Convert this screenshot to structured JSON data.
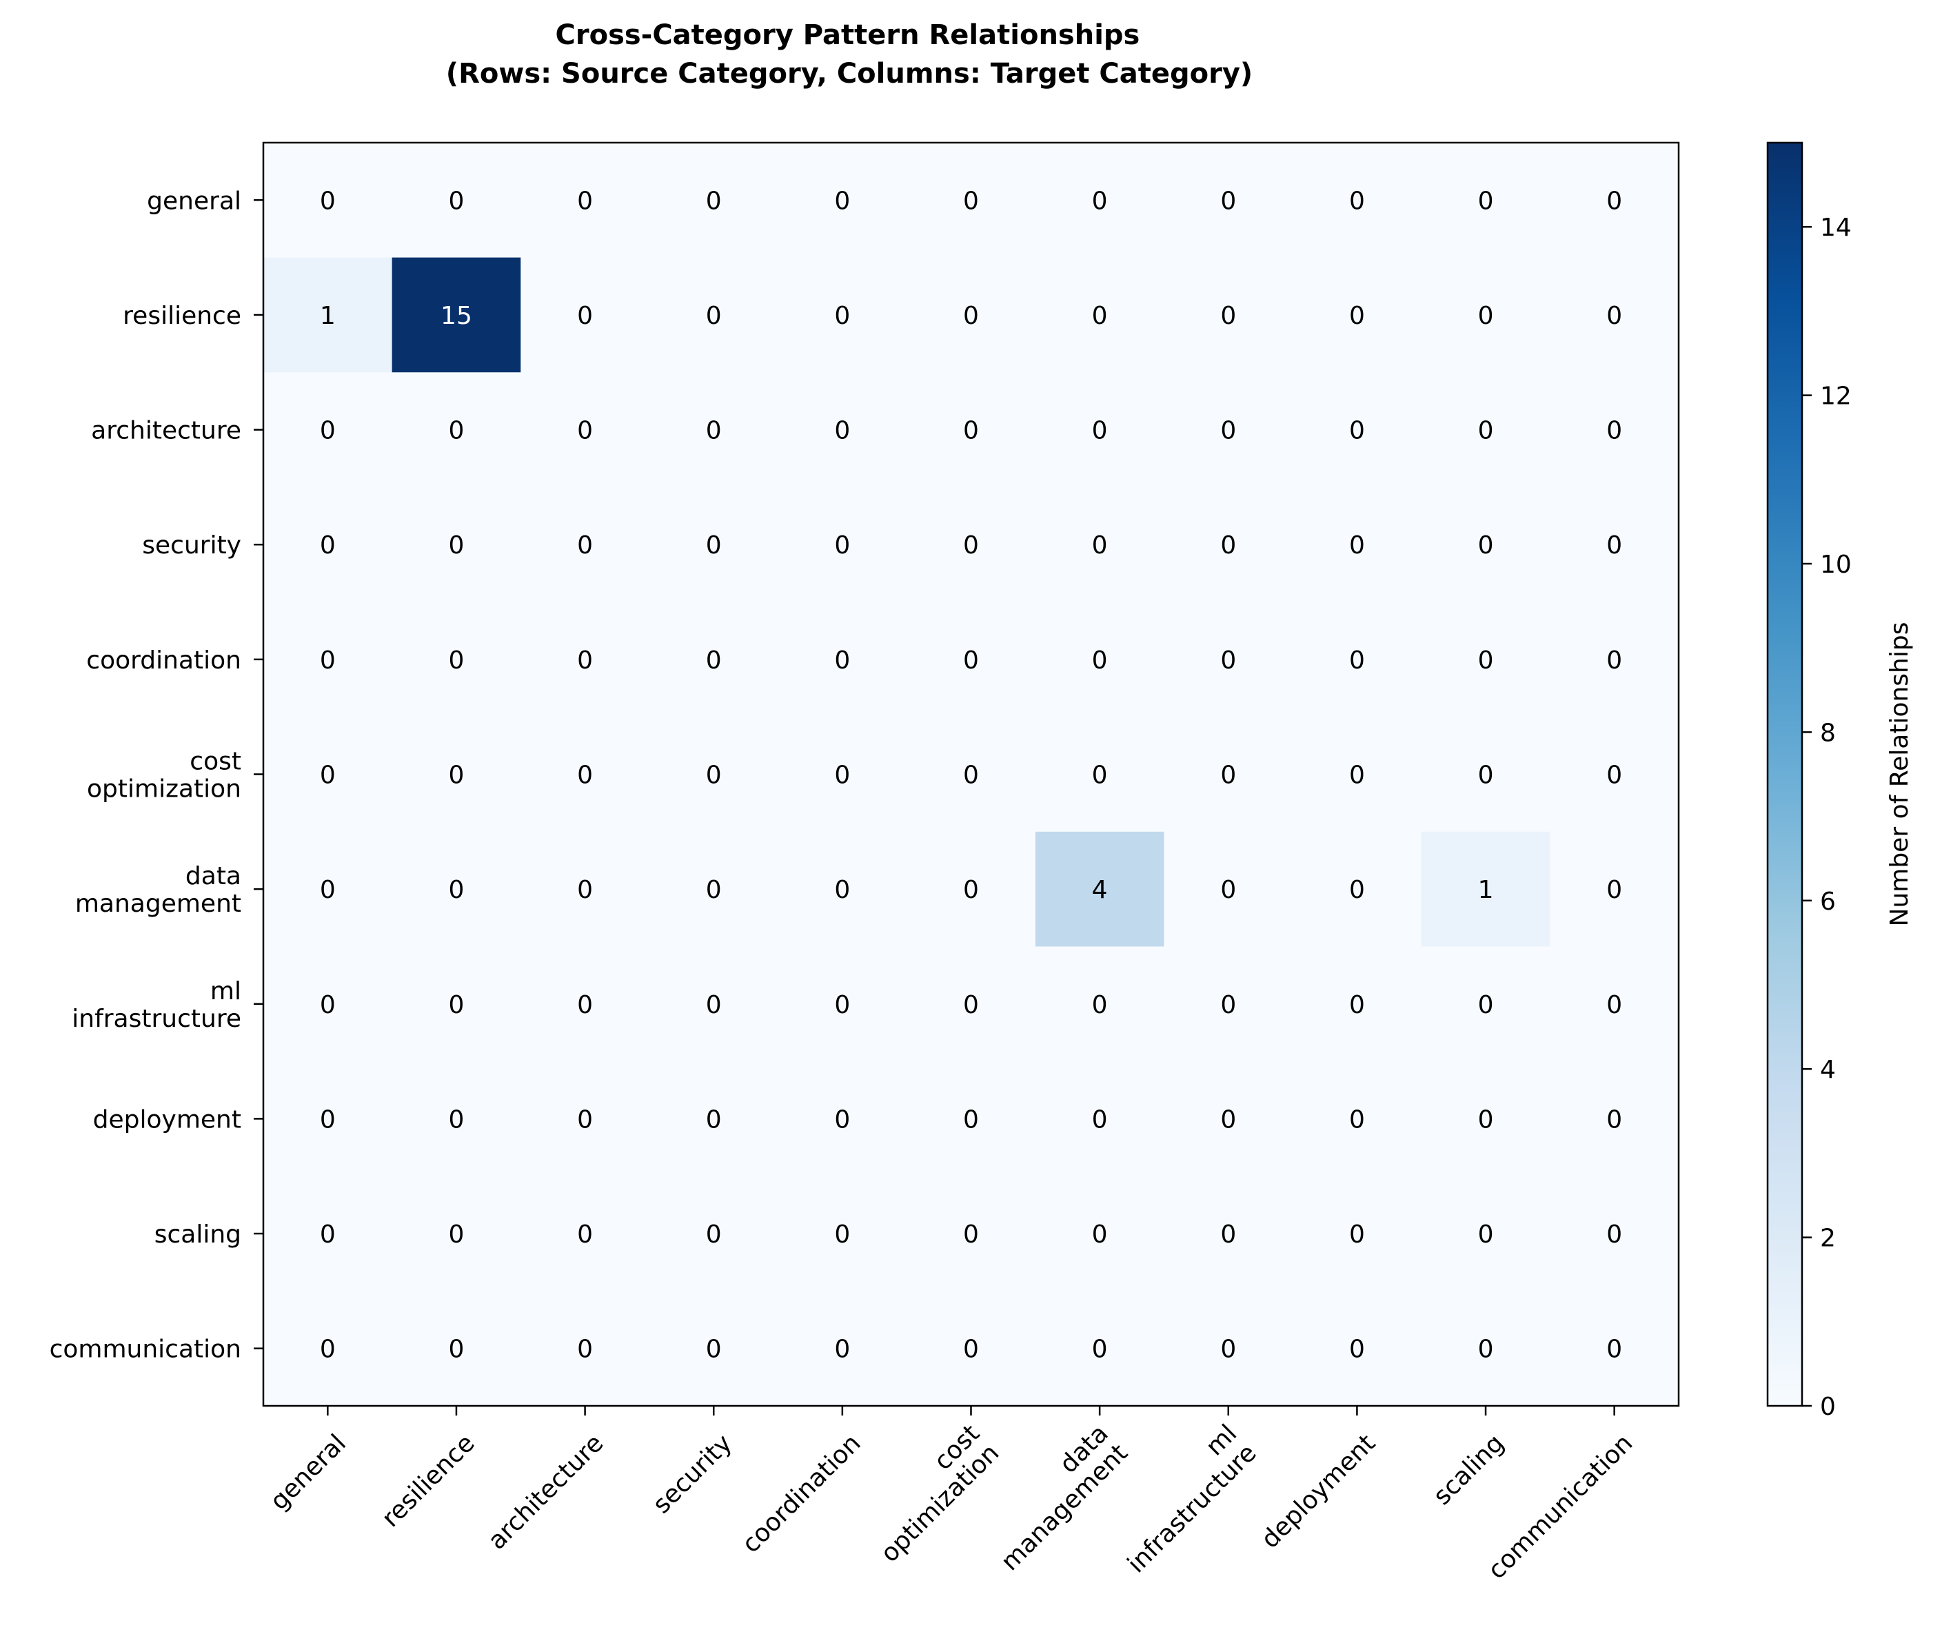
{
  "chart_data": {
    "type": "heatmap",
    "title": [
      "Cross-Category Pattern Relationships",
      "(Rows: Source Category, Columns: Target Category)"
    ],
    "rows": [
      [
        "general"
      ],
      [
        "resilience"
      ],
      [
        "architecture"
      ],
      [
        "security"
      ],
      [
        "coordination"
      ],
      [
        "cost",
        "optimization"
      ],
      [
        "data",
        "management"
      ],
      [
        "ml",
        "infrastructure"
      ],
      [
        "deployment"
      ],
      [
        "scaling"
      ],
      [
        "communication"
      ]
    ],
    "columns": [
      [
        "general"
      ],
      [
        "resilience"
      ],
      [
        "architecture"
      ],
      [
        "security"
      ],
      [
        "coordination"
      ],
      [
        "cost",
        "optimization"
      ],
      [
        "data",
        "management"
      ],
      [
        "ml",
        "infrastructure"
      ],
      [
        "deployment"
      ],
      [
        "scaling"
      ],
      [
        "communication"
      ]
    ],
    "values": [
      [
        0,
        0,
        0,
        0,
        0,
        0,
        0,
        0,
        0,
        0,
        0
      ],
      [
        1,
        15,
        0,
        0,
        0,
        0,
        0,
        0,
        0,
        0,
        0
      ],
      [
        0,
        0,
        0,
        0,
        0,
        0,
        0,
        0,
        0,
        0,
        0
      ],
      [
        0,
        0,
        0,
        0,
        0,
        0,
        0,
        0,
        0,
        0,
        0
      ],
      [
        0,
        0,
        0,
        0,
        0,
        0,
        0,
        0,
        0,
        0,
        0
      ],
      [
        0,
        0,
        0,
        0,
        0,
        0,
        0,
        0,
        0,
        0,
        0
      ],
      [
        0,
        0,
        0,
        0,
        0,
        0,
        4,
        0,
        0,
        1,
        0
      ],
      [
        0,
        0,
        0,
        0,
        0,
        0,
        0,
        0,
        0,
        0,
        0
      ],
      [
        0,
        0,
        0,
        0,
        0,
        0,
        0,
        0,
        0,
        0,
        0
      ],
      [
        0,
        0,
        0,
        0,
        0,
        0,
        0,
        0,
        0,
        0,
        0
      ],
      [
        0,
        0,
        0,
        0,
        0,
        0,
        0,
        0,
        0,
        0,
        0
      ]
    ],
    "colormap": "Blues",
    "vmin": 0,
    "vmax": 15,
    "colorbar": {
      "label": "Number of Relationships",
      "ticks": [
        0,
        2,
        4,
        6,
        8,
        10,
        12,
        14
      ]
    },
    "xtick_rotation": "45deg-right-aligned",
    "colors": {
      "blues_stops": [
        "#f7fbff",
        "#deebf7",
        "#c6dbef",
        "#9ecae1",
        "#6baed6",
        "#4292c6",
        "#2171b5",
        "#08519c",
        "#08306b"
      ],
      "text_dark": "#000000",
      "text_light": "#ffffff"
    }
  }
}
